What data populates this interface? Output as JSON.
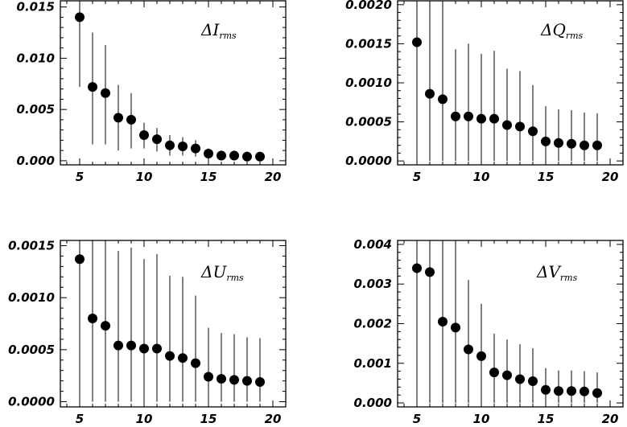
{
  "chart_data": [
    {
      "type": "scatter",
      "label_prefix": "Δ",
      "label_symbol": "I",
      "label_subscript": "rms",
      "xlim": [
        3.5,
        21
      ],
      "ylim": [
        -0.0004,
        0.0156
      ],
      "xticks": [
        5,
        10,
        15,
        20
      ],
      "xtick_labels": [
        "5",
        "10",
        "15",
        "20"
      ],
      "yticks": [
        0.0,
        0.005,
        0.01,
        0.015
      ],
      "ytick_labels": [
        "0.000",
        "0.005",
        "0.010",
        "0.015"
      ],
      "x": [
        5,
        6,
        7,
        8,
        9,
        10,
        11,
        12,
        13,
        14,
        15,
        16,
        17,
        18,
        19
      ],
      "y": [
        0.014,
        0.0072,
        0.0066,
        0.0042,
        0.004,
        0.0025,
        0.0021,
        0.0015,
        0.0014,
        0.0012,
        0.0007,
        0.0005,
        0.0005,
        0.0004,
        0.0004
      ],
      "err_low": [
        0.0072,
        0.0016,
        0.0016,
        0.001,
        0.0012,
        0.0012,
        0.0009,
        0.0005,
        0.0005,
        0.0004,
        0.0002,
        0.0001,
        0.0001,
        0.0001,
        0.0001
      ],
      "err_high": [
        0.0156,
        0.0125,
        0.0113,
        0.0074,
        0.0066,
        0.0037,
        0.0032,
        0.0025,
        0.0023,
        0.002,
        0.0012,
        0.001,
        0.001,
        0.0009,
        0.0008
      ]
    },
    {
      "type": "scatter",
      "label_prefix": "Δ",
      "label_symbol": "Q",
      "label_subscript": "rms",
      "xlim": [
        3.5,
        21
      ],
      "ylim": [
        -5e-05,
        0.00205
      ],
      "xticks": [
        5,
        10,
        15,
        20
      ],
      "xtick_labels": [
        "5",
        "10",
        "15",
        "20"
      ],
      "yticks": [
        0.0,
        0.0005,
        0.001,
        0.0015,
        0.002
      ],
      "ytick_labels": [
        "0.0000",
        "0.0005",
        "0.0010",
        "0.0015",
        "0.0020"
      ],
      "x": [
        5,
        6,
        7,
        8,
        9,
        10,
        11,
        12,
        13,
        14,
        15,
        16,
        17,
        18,
        19
      ],
      "y": [
        0.00152,
        0.00086,
        0.00079,
        0.00057,
        0.00057,
        0.00054,
        0.00054,
        0.00046,
        0.00044,
        0.00038,
        0.00025,
        0.00023,
        0.00022,
        0.0002,
        0.0002
      ],
      "err_low": [
        0.0,
        0.0,
        0.0,
        0.0,
        0.0,
        0.0,
        0.0,
        0.0,
        0.0,
        0.0,
        0.0,
        0.0,
        0.0,
        0.0,
        0.0
      ],
      "err_high": [
        0.00205,
        0.00205,
        0.00205,
        0.00143,
        0.0015,
        0.00137,
        0.00141,
        0.00118,
        0.00115,
        0.00097,
        0.0007,
        0.00066,
        0.00065,
        0.00062,
        0.00061
      ]
    },
    {
      "type": "scatter",
      "label_prefix": "Δ",
      "label_symbol": "U",
      "label_subscript": "rms",
      "xlim": [
        3.5,
        21
      ],
      "ylim": [
        -5e-05,
        0.00155
      ],
      "xticks": [
        5,
        10,
        15,
        20
      ],
      "xtick_labels": [
        "5",
        "10",
        "15",
        "20"
      ],
      "yticks": [
        0.0,
        0.0005,
        0.001,
        0.0015
      ],
      "ytick_labels": [
        "0.0000",
        "0.0005",
        "0.0010",
        "0.0015"
      ],
      "x": [
        5,
        6,
        7,
        8,
        9,
        10,
        11,
        12,
        13,
        14,
        15,
        16,
        17,
        18,
        19
      ],
      "y": [
        0.00137,
        0.0008,
        0.00073,
        0.00054,
        0.00054,
        0.00051,
        0.00051,
        0.00044,
        0.00042,
        0.00037,
        0.00024,
        0.00022,
        0.00021,
        0.0002,
        0.00019
      ],
      "err_low": [
        0.0,
        0.0,
        0.0,
        0.0,
        0.0,
        0.0,
        0.0,
        0.0,
        0.0,
        0.0,
        0.0,
        0.0,
        0.0,
        0.0,
        0.0
      ],
      "err_high": [
        0.00155,
        0.00155,
        0.00155,
        0.00145,
        0.00148,
        0.00137,
        0.00142,
        0.00121,
        0.0012,
        0.00102,
        0.00071,
        0.00066,
        0.00065,
        0.00062,
        0.00061
      ]
    },
    {
      "type": "scatter",
      "label_prefix": "Δ",
      "label_symbol": "V",
      "label_subscript": "rms",
      "xlim": [
        3.5,
        21
      ],
      "ylim": [
        -0.0001,
        0.0041
      ],
      "xticks": [
        5,
        10,
        15,
        20
      ],
      "xtick_labels": [
        "5",
        "10",
        "15",
        "20"
      ],
      "yticks": [
        0.0,
        0.001,
        0.002,
        0.003,
        0.004
      ],
      "ytick_labels": [
        "0.000",
        "0.001",
        "0.002",
        "0.003",
        "0.004"
      ],
      "x": [
        5,
        6,
        7,
        8,
        9,
        10,
        11,
        12,
        13,
        14,
        15,
        16,
        17,
        18,
        19
      ],
      "y": [
        0.0034,
        0.0033,
        0.00205,
        0.0019,
        0.00135,
        0.00118,
        0.00077,
        0.0007,
        0.0006,
        0.00055,
        0.00033,
        0.0003,
        0.0003,
        0.00029,
        0.00025
      ],
      "err_low": [
        0.0,
        0.0,
        0.0,
        0.0,
        0.0,
        0.0,
        0.0,
        0.0,
        0.0,
        0.0,
        0.0,
        0.0,
        0.0,
        0.0,
        0.0
      ],
      "err_high": [
        0.0041,
        0.0041,
        0.0041,
        0.0041,
        0.0031,
        0.0025,
        0.00175,
        0.0016,
        0.00148,
        0.00138,
        0.00088,
        0.00082,
        0.00082,
        0.0008,
        0.00077
      ]
    }
  ]
}
